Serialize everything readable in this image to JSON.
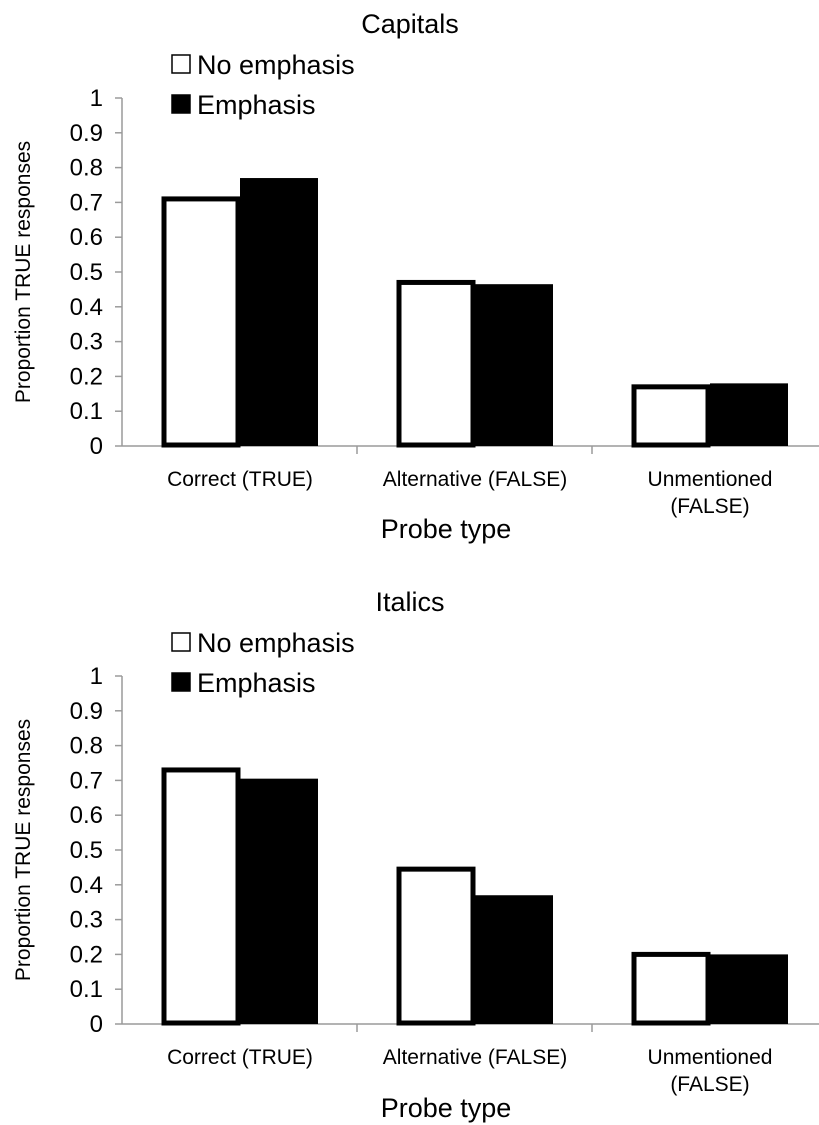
{
  "chart_data": [
    {
      "type": "bar",
      "title": "Capitals",
      "xlabel": "Probe type",
      "ylabel": "Proportion TRUE responses",
      "ylim": [
        0,
        1
      ],
      "yticks": [
        "0",
        "0.1",
        "0.2",
        "0.3",
        "0.4",
        "0.5",
        "0.6",
        "0.7",
        "0.8",
        "0.9",
        "1"
      ],
      "categories": [
        "Correct (TRUE)",
        "Alternative (FALSE)",
        "Unmentioned (FALSE)"
      ],
      "category_lines": [
        [
          "Correct (TRUE)"
        ],
        [
          "Alternative (FALSE)"
        ],
        [
          "Unmentioned",
          "(FALSE)"
        ]
      ],
      "series": [
        {
          "name": "No emphasis",
          "values": [
            0.71,
            0.47,
            0.17
          ],
          "fill": "#ffffff"
        },
        {
          "name": "Emphasis",
          "values": [
            0.77,
            0.465,
            0.18
          ],
          "fill": "#000000"
        }
      ],
      "legend_placement": "top-left",
      "grid": false
    },
    {
      "type": "bar",
      "title": "Italics",
      "xlabel": "Probe type",
      "ylabel": "Proportion TRUE responses",
      "ylim": [
        0,
        1
      ],
      "yticks": [
        "0",
        "0.1",
        "0.2",
        "0.3",
        "0.4",
        "0.5",
        "0.6",
        "0.7",
        "0.8",
        "0.9",
        "1"
      ],
      "categories": [
        "Correct (TRUE)",
        "Alternative (FALSE)",
        "Unmentioned (FALSE)"
      ],
      "category_lines": [
        [
          "Correct (TRUE)"
        ],
        [
          "Alternative (FALSE)"
        ],
        [
          "Unmentioned",
          "(FALSE)"
        ]
      ],
      "series": [
        {
          "name": "No emphasis",
          "values": [
            0.73,
            0.445,
            0.2
          ],
          "fill": "#ffffff"
        },
        {
          "name": "Emphasis",
          "values": [
            0.705,
            0.37,
            0.2
          ],
          "fill": "#000000"
        }
      ],
      "legend_placement": "top-left",
      "grid": false
    }
  ]
}
